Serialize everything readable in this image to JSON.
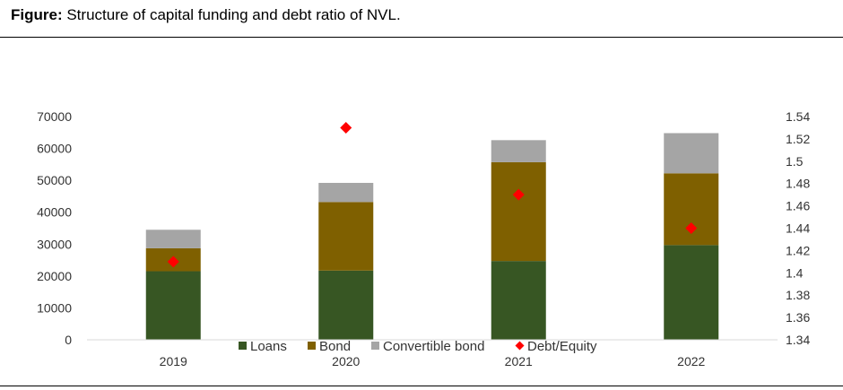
{
  "figure": {
    "label": "Figure:",
    "title": "Structure of capital funding and debt ratio of NVL."
  },
  "chart_data": {
    "type": "bar",
    "stacked": true,
    "categories": [
      "2019",
      "2020",
      "2021",
      "2022"
    ],
    "series": [
      {
        "name": "Loans",
        "values": [
          21500,
          21700,
          24700,
          29700
        ],
        "color": "#375623"
      },
      {
        "name": "Bond",
        "values": [
          7200,
          21500,
          31000,
          22500
        ],
        "color": "#7f6000"
      },
      {
        "name": "Convertible bond",
        "values": [
          5800,
          6000,
          6900,
          12600
        ],
        "color": "#a5a5a5"
      }
    ],
    "secondary_series": {
      "name": "Debt/Equity",
      "type": "scatter",
      "marker": "diamond",
      "values": [
        1.41,
        1.53,
        1.47,
        1.44
      ],
      "color": "#ff0000"
    },
    "y_axis_left": {
      "min": 0,
      "max": 70000,
      "ticks": [
        "0",
        "10000",
        "20000",
        "30000",
        "40000",
        "50000",
        "60000",
        "70000"
      ]
    },
    "y_axis_right": {
      "min": 1.34,
      "max": 1.54,
      "ticks": [
        "1.34",
        "1.36",
        "1.38",
        "1.4",
        "1.42",
        "1.44",
        "1.46",
        "1.48",
        "1.5",
        "1.52",
        "1.54"
      ]
    },
    "grid": false,
    "legend_position": "bottom"
  }
}
